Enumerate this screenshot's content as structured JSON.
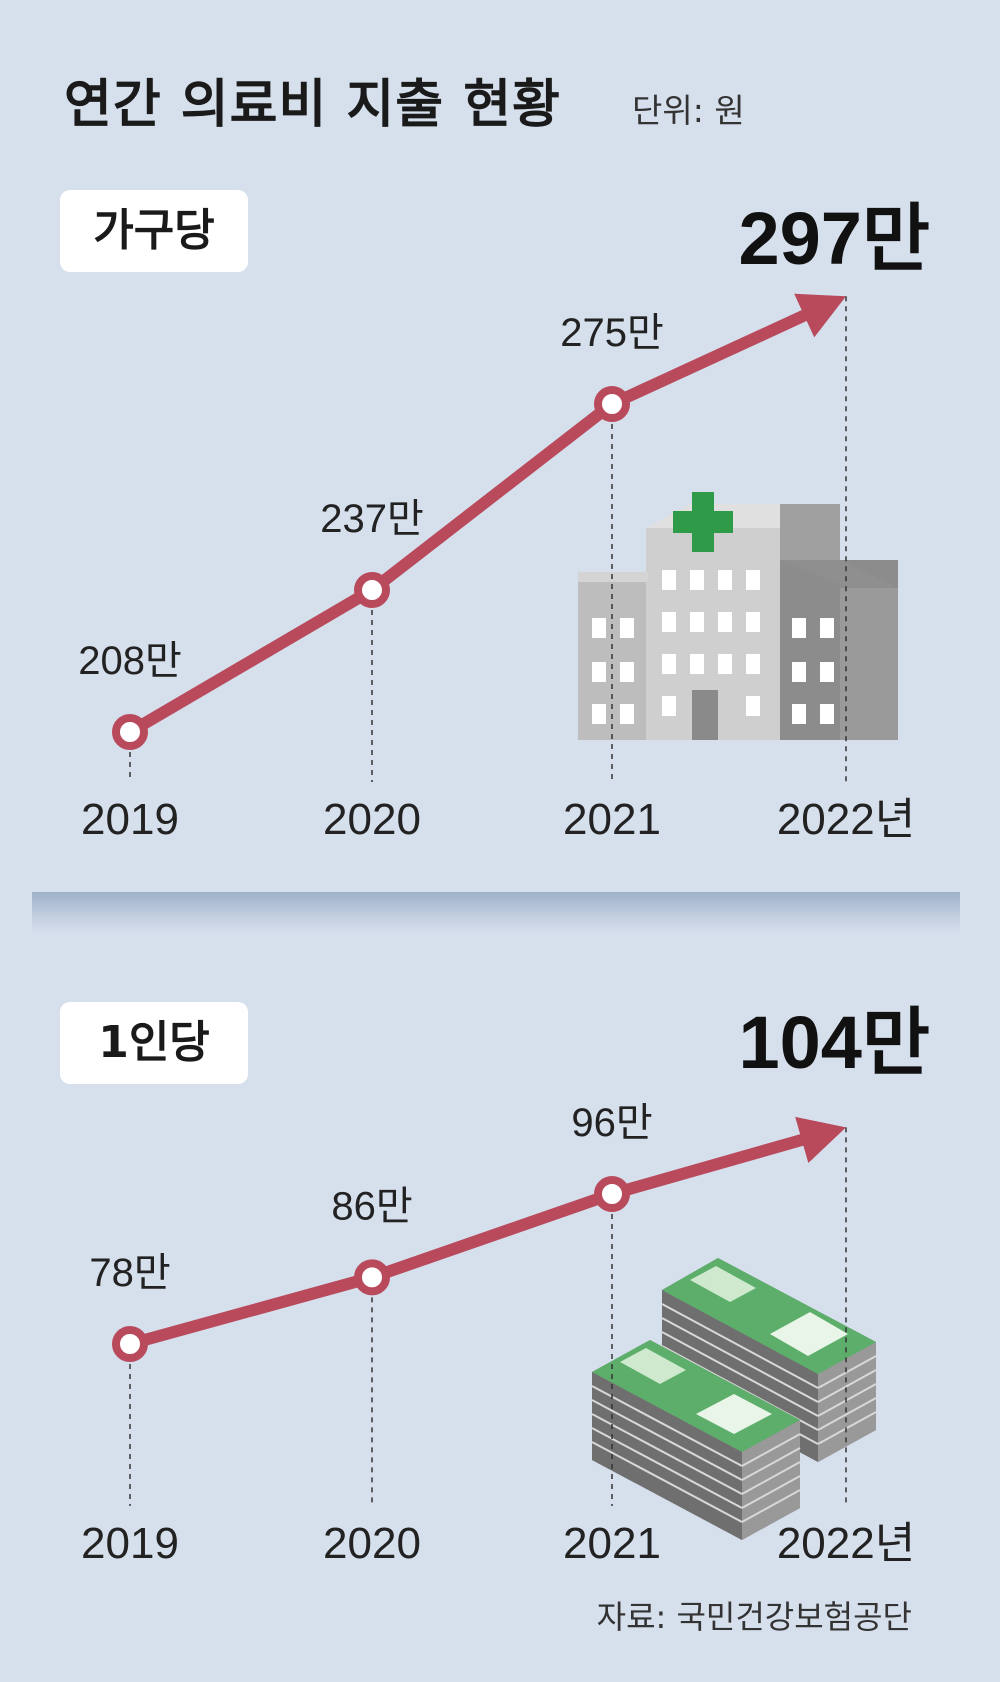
{
  "title": "연간 의료비 지출 현황",
  "unit": "단위: 원",
  "source": "자료: 국민건강보험공단",
  "colors": {
    "line": "#b84a5c",
    "background": "#d6dfec"
  },
  "chart_data": [
    {
      "type": "line",
      "label": "가구당",
      "x": [
        "2019",
        "2020",
        "2021",
        "2022년"
      ],
      "values": [
        208,
        237,
        275,
        297
      ],
      "value_labels": [
        "208만",
        "237만",
        "275만",
        "297만"
      ],
      "icon": "hospital-icon"
    },
    {
      "type": "line",
      "label": "1인당",
      "x": [
        "2019",
        "2020",
        "2021",
        "2022년"
      ],
      "values": [
        78,
        86,
        96,
        104
      ],
      "value_labels": [
        "78만",
        "86만",
        "96만",
        "104만"
      ],
      "icon": "money-stack-icon"
    }
  ]
}
